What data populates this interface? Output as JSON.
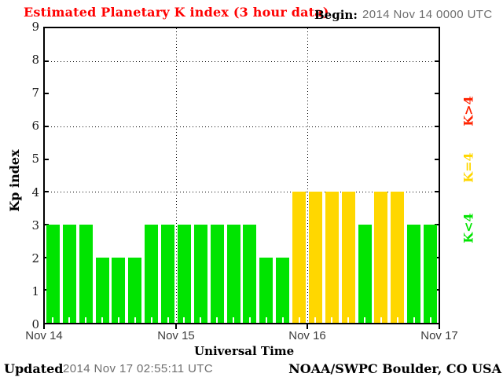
{
  "header": {
    "title": "Estimated Planetary K index (3 hour data)",
    "begin_label": "Begin:",
    "begin_value": "2014 Nov 14 0000 UTC"
  },
  "footer": {
    "updated_label": "Updated",
    "updated_value": "2014 Nov 17 02:55:11 UTC",
    "credit": "NOAA/SWPC Boulder, CO USA"
  },
  "chart_data": {
    "type": "bar",
    "title": "Estimated Planetary K index (3 hour data)",
    "xlabel": "Universal Time",
    "ylabel": "Kp index",
    "ylim": [
      0,
      9
    ],
    "yticks": [
      0,
      1,
      2,
      3,
      4,
      5,
      6,
      7,
      8,
      9
    ],
    "gridlines_y": [
      4,
      6,
      8
    ],
    "grid": "dotted",
    "interval_hours": 3,
    "bars_per_day": 8,
    "x_day_labels": [
      "Nov 14",
      "Nov 15",
      "Nov 16",
      "Nov 17"
    ],
    "values": [
      3,
      3,
      3,
      2,
      2,
      2,
      3,
      3,
      3,
      3,
      3,
      3,
      3,
      2,
      2,
      4,
      4,
      4,
      4,
      3,
      4,
      4,
      3,
      3
    ],
    "colors": {
      "low": "#00e400",
      "mid": "#ffd700",
      "high": "#ff2200",
      "title": "#ff0000",
      "muted_text": "#6e6e6e"
    },
    "legend": [
      {
        "id": "high",
        "label": "K>4",
        "color": "#ff2200"
      },
      {
        "id": "mid",
        "label": "K=4",
        "color": "#ffd700"
      },
      {
        "id": "low",
        "label": "K<4",
        "color": "#00e400"
      }
    ],
    "legend_position": "right"
  }
}
